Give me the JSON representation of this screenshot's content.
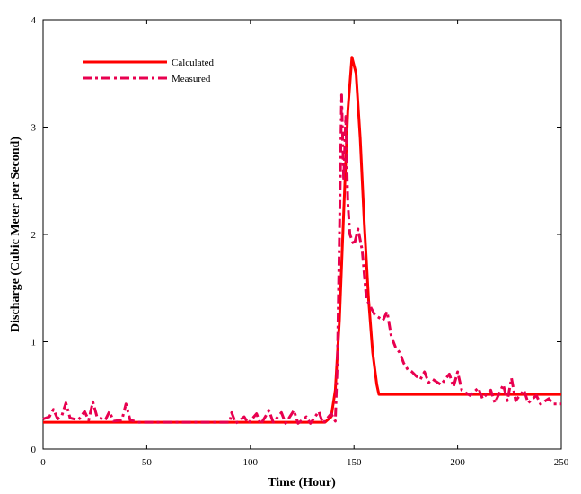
{
  "chart_data": {
    "type": "line",
    "xlabel": "Time (Hour)",
    "ylabel": "Discharge (Cubic Meter per Second)",
    "xlim": [
      0,
      250
    ],
    "ylim": [
      0,
      4
    ],
    "x_ticks": [
      "0",
      "50",
      "100",
      "150",
      "200",
      "250"
    ],
    "y_ticks": [
      "0",
      "1",
      "2",
      "3",
      "4"
    ],
    "grid": false,
    "legend_position": "top-left",
    "series": [
      {
        "name": "Calculated",
        "style": "solid",
        "color": "#ff0000",
        "points": [
          [
            0,
            0.25
          ],
          [
            136,
            0.25
          ],
          [
            139,
            0.3
          ],
          [
            141,
            0.55
          ],
          [
            143,
            1.2
          ],
          [
            145,
            2.2
          ],
          [
            147,
            3.15
          ],
          [
            149,
            3.65
          ],
          [
            151,
            3.5
          ],
          [
            153,
            2.9
          ],
          [
            155,
            2.1
          ],
          [
            157,
            1.4
          ],
          [
            159,
            0.9
          ],
          [
            161,
            0.6
          ],
          [
            162,
            0.51
          ],
          [
            250,
            0.51
          ]
        ]
      },
      {
        "name": "Measured",
        "style": "dash-dot",
        "color": "#e8004f",
        "points": [
          [
            0,
            0.28
          ],
          [
            3,
            0.3
          ],
          [
            5,
            0.37
          ],
          [
            7,
            0.28
          ],
          [
            9,
            0.31
          ],
          [
            11,
            0.43
          ],
          [
            13,
            0.29
          ],
          [
            17,
            0.27
          ],
          [
            20,
            0.35
          ],
          [
            22,
            0.27
          ],
          [
            24,
            0.44
          ],
          [
            26,
            0.3
          ],
          [
            30,
            0.27
          ],
          [
            32,
            0.35
          ],
          [
            34,
            0.26
          ],
          [
            38,
            0.27
          ],
          [
            40,
            0.42
          ],
          [
            42,
            0.27
          ],
          [
            46,
            0.25
          ],
          [
            90,
            0.25
          ],
          [
            91,
            0.34
          ],
          [
            93,
            0.24
          ],
          [
            97,
            0.3
          ],
          [
            99,
            0.24
          ],
          [
            103,
            0.33
          ],
          [
            105,
            0.23
          ],
          [
            109,
            0.36
          ],
          [
            111,
            0.25
          ],
          [
            115,
            0.34
          ],
          [
            117,
            0.24
          ],
          [
            121,
            0.36
          ],
          [
            123,
            0.24
          ],
          [
            127,
            0.3
          ],
          [
            129,
            0.24
          ],
          [
            133,
            0.35
          ],
          [
            135,
            0.24
          ],
          [
            139,
            0.33
          ],
          [
            141,
            0.26
          ],
          [
            142,
            0.8
          ],
          [
            143,
            2.0
          ],
          [
            144,
            3.3
          ],
          [
            145,
            2.5
          ],
          [
            146,
            3.1
          ],
          [
            147,
            2.3
          ],
          [
            148,
            2.0
          ],
          [
            150,
            1.9
          ],
          [
            152,
            2.05
          ],
          [
            154,
            1.85
          ],
          [
            156,
            1.4
          ],
          [
            160,
            1.25
          ],
          [
            164,
            1.2
          ],
          [
            166,
            1.28
          ],
          [
            168,
            1.05
          ],
          [
            170,
            0.95
          ],
          [
            172,
            0.9
          ],
          [
            174,
            0.8
          ],
          [
            176,
            0.74
          ],
          [
            178,
            0.72
          ],
          [
            180,
            0.68
          ],
          [
            182,
            0.65
          ],
          [
            184,
            0.72
          ],
          [
            186,
            0.62
          ],
          [
            188,
            0.65
          ],
          [
            192,
            0.6
          ],
          [
            196,
            0.7
          ],
          [
            198,
            0.58
          ],
          [
            200,
            0.72
          ],
          [
            202,
            0.55
          ],
          [
            206,
            0.5
          ],
          [
            210,
            0.57
          ],
          [
            212,
            0.47
          ],
          [
            216,
            0.55
          ],
          [
            218,
            0.43
          ],
          [
            222,
            0.6
          ],
          [
            224,
            0.45
          ],
          [
            226,
            0.66
          ],
          [
            228,
            0.45
          ],
          [
            232,
            0.55
          ],
          [
            234,
            0.43
          ],
          [
            238,
            0.5
          ],
          [
            240,
            0.42
          ],
          [
            244,
            0.47
          ],
          [
            246,
            0.42
          ],
          [
            250,
            0.42
          ]
        ]
      }
    ]
  }
}
